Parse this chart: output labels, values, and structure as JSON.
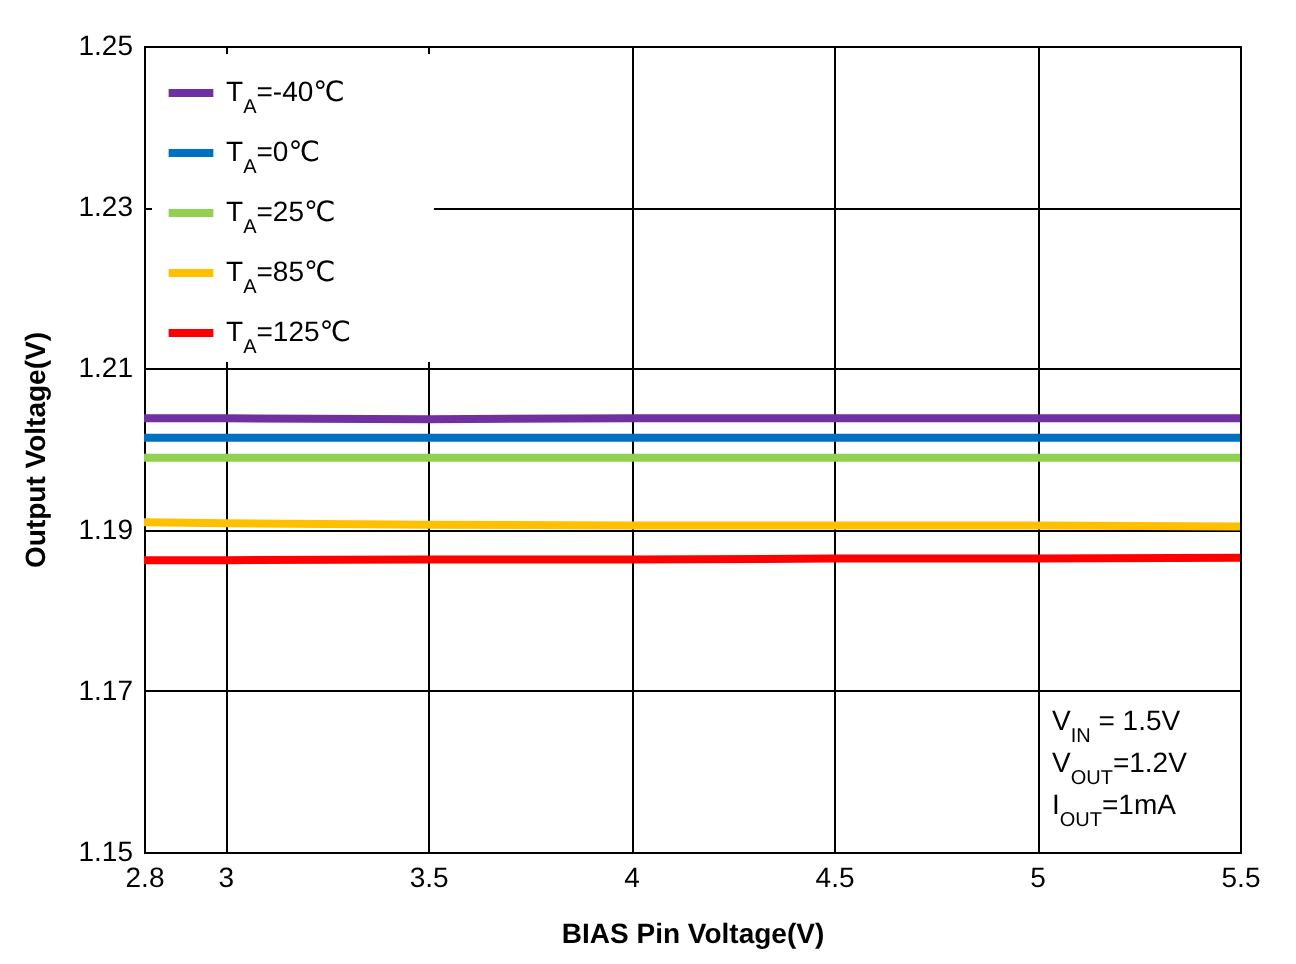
{
  "chart_data": {
    "type": "line",
    "xlabel": "BIAS Pin Voltage(V)",
    "ylabel": "Output Voltage(V)",
    "x": [
      2.8,
      3,
      3.5,
      4,
      4.5,
      5,
      5.5
    ],
    "series": [
      {
        "name": "T$_{A}$=-40℃",
        "color": "#7030a0",
        "values": [
          1.2038,
          1.2038,
          1.2037,
          1.2038,
          1.2038,
          1.2038,
          1.2038
        ]
      },
      {
        "name": "T$_{A}$=0℃",
        "color": "#0070c0",
        "values": [
          1.2014,
          1.2014,
          1.2014,
          1.2014,
          1.2014,
          1.2014,
          1.2014
        ]
      },
      {
        "name": "T$_{A}$=25℃",
        "color": "#92d050",
        "values": [
          1.1989,
          1.1989,
          1.1989,
          1.1989,
          1.1989,
          1.1989,
          1.1989
        ]
      },
      {
        "name": "T$_{A}$=85℃",
        "color": "#ffc000",
        "values": [
          1.1909,
          1.1908,
          1.1906,
          1.1905,
          1.1905,
          1.1905,
          1.1904
        ]
      },
      {
        "name": "T$_{A}$=125℃",
        "color": "#ff0000",
        "values": [
          1.1862,
          1.1862,
          1.1863,
          1.1863,
          1.1864,
          1.1864,
          1.1865
        ]
      }
    ],
    "xlim": [
      2.8,
      5.5
    ],
    "xticks": [
      2.8,
      3,
      3.5,
      4,
      4.5,
      5,
      5.5
    ],
    "ylim": [
      1.15,
      1.25
    ],
    "yticks": [
      1.15,
      1.17,
      1.19,
      1.21,
      1.23,
      1.25
    ],
    "grid": true,
    "legend": "top left",
    "marker": "none",
    "line_style": "solid",
    "annotations": [
      "V$_{IN}$ = 1.5V",
      "V$_{OUT}$=1.2V",
      "I$_{OUT}$=1mA"
    ]
  }
}
